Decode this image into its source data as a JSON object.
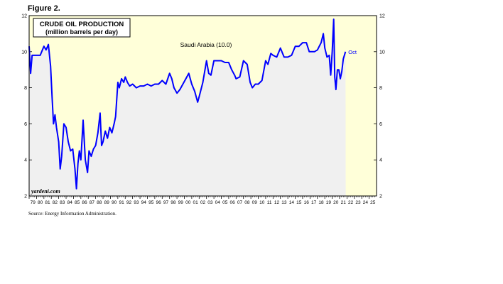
{
  "figure_label": "Figure 2.",
  "source_note": "Source: Energy Information Administration.",
  "colors": {
    "plot_bg": "#FFFFD9",
    "area_fill": "#F0F0F0",
    "line": "#0000FF",
    "frame": "#000000"
  },
  "chart_data": {
    "type": "area",
    "title": "CRUDE OIL PRODUCTION",
    "subtitle": "(million barrels per day)",
    "xlabel": "",
    "ylabel": "",
    "series": [
      {
        "name": "Saudi Arabia (10.0)",
        "x": [
          1979.0,
          1979.2,
          1979.4,
          1979.6,
          1980.0,
          1980.5,
          1981.0,
          1981.3,
          1981.6,
          1981.9,
          1982.1,
          1982.3,
          1982.5,
          1982.7,
          1983.0,
          1983.2,
          1983.4,
          1983.7,
          1984.0,
          1984.3,
          1984.6,
          1984.9,
          1985.2,
          1985.4,
          1985.6,
          1985.8,
          1986.0,
          1986.3,
          1986.6,
          1986.9,
          1987.1,
          1987.4,
          1987.7,
          1988.0,
          1988.3,
          1988.6,
          1988.8,
          1989.0,
          1989.3,
          1989.6,
          1989.9,
          1990.2,
          1990.5,
          1990.7,
          1991.0,
          1991.2,
          1991.5,
          1991.8,
          1992.0,
          1992.3,
          1992.6,
          1993.0,
          1993.5,
          1994.0,
          1994.5,
          1995.0,
          1995.5,
          1996.0,
          1996.5,
          1997.0,
          1997.5,
          1998.0,
          1998.3,
          1998.6,
          1999.0,
          1999.4,
          1999.8,
          2000.2,
          2000.6,
          2001.0,
          2001.4,
          2001.8,
          2002.0,
          2002.5,
          2003.0,
          2003.3,
          2003.6,
          2004.0,
          2004.5,
          2005.0,
          2005.5,
          2006.0,
          2006.4,
          2006.8,
          2007.0,
          2007.5,
          2008.0,
          2008.5,
          2008.9,
          2009.2,
          2009.6,
          2010.0,
          2010.5,
          2011.0,
          2011.3,
          2011.7,
          2012.0,
          2012.5,
          2013.0,
          2013.5,
          2014.0,
          2014.5,
          2015.0,
          2015.5,
          2016.0,
          2016.5,
          2016.9,
          2017.2,
          2017.6,
          2018.0,
          2018.5,
          2018.8,
          2019.0,
          2019.3,
          2019.6,
          2019.8,
          2020.0,
          2020.2,
          2020.35,
          2020.5,
          2020.7,
          2020.9,
          2021.1,
          2021.3,
          2021.5,
          2021.8
        ],
        "values": [
          10.3,
          8.8,
          9.8,
          9.8,
          9.8,
          9.8,
          10.3,
          10.1,
          10.4,
          9.2,
          7.5,
          6.0,
          6.5,
          5.8,
          5.0,
          3.5,
          4.2,
          6.0,
          5.8,
          5.0,
          4.5,
          4.6,
          3.5,
          2.4,
          3.8,
          4.5,
          4.0,
          6.2,
          4.0,
          3.3,
          4.5,
          4.2,
          4.6,
          4.8,
          5.5,
          6.6,
          4.8,
          5.0,
          5.6,
          5.2,
          5.8,
          5.5,
          6.0,
          6.4,
          8.3,
          8.0,
          8.5,
          8.3,
          8.6,
          8.3,
          8.1,
          8.2,
          8.0,
          8.1,
          8.1,
          8.2,
          8.1,
          8.2,
          8.2,
          8.4,
          8.2,
          8.8,
          8.5,
          8.0,
          7.7,
          7.9,
          8.2,
          8.5,
          8.8,
          8.2,
          7.8,
          7.2,
          7.5,
          8.3,
          9.5,
          8.8,
          8.7,
          9.5,
          9.5,
          9.5,
          9.4,
          9.4,
          9.0,
          8.7,
          8.5,
          8.6,
          9.5,
          9.3,
          8.3,
          8.0,
          8.2,
          8.2,
          8.4,
          9.5,
          9.3,
          9.9,
          9.8,
          9.7,
          10.2,
          9.7,
          9.7,
          9.8,
          10.3,
          10.3,
          10.5,
          10.5,
          10.0,
          10.0,
          10.0,
          10.1,
          10.5,
          11.0,
          10.2,
          9.7,
          9.8,
          8.7,
          10.0,
          11.8,
          8.6,
          7.9,
          9.0,
          9.0,
          8.5,
          8.9,
          9.6,
          10.0
        ]
      }
    ],
    "end_label": "Oct",
    "xlim": [
      1979,
      2026
    ],
    "ylim": [
      2,
      12
    ],
    "y_ticks": [
      2,
      4,
      6,
      8,
      10,
      12
    ],
    "x_tick_labels": [
      "79",
      "80",
      "81",
      "82",
      "83",
      "84",
      "85",
      "86",
      "87",
      "88",
      "89",
      "90",
      "91",
      "92",
      "93",
      "94",
      "95",
      "96",
      "97",
      "98",
      "99",
      "00",
      "01",
      "02",
      "03",
      "04",
      "05",
      "06",
      "07",
      "08",
      "09",
      "10",
      "11",
      "12",
      "13",
      "14",
      "15",
      "16",
      "17",
      "18",
      "19",
      "20",
      "21",
      "22",
      "23",
      "24",
      "25"
    ],
    "shaded_region": [
      1979,
      2021.83
    ],
    "watermark": "yardeni.com",
    "grid": false,
    "legend": "inline label at top-center"
  }
}
